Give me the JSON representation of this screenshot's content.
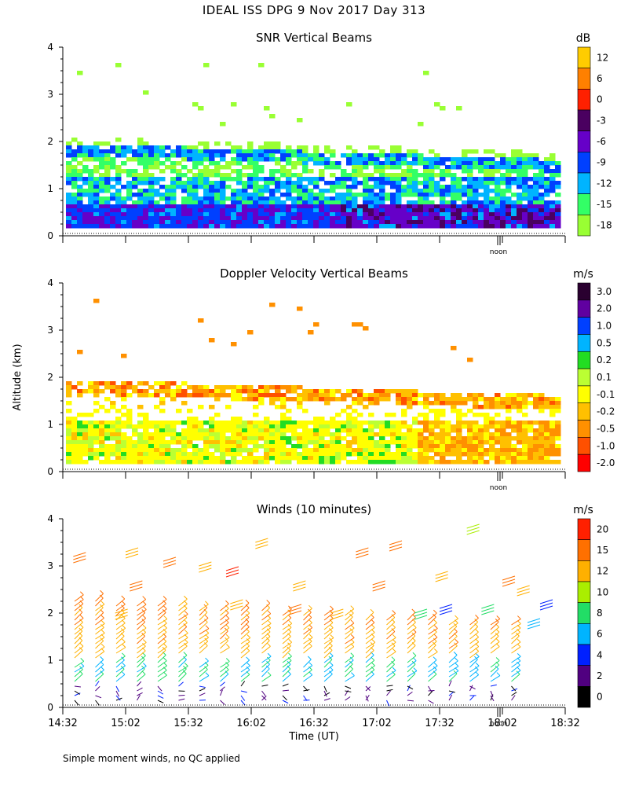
{
  "page_title": "IDEAL ISS DPG   9 Nov 2017 Day 313",
  "footnote": "Simple moment winds, no QC applied",
  "ylabel": "Altitude (km)",
  "xlabel": "Time (UT)",
  "chart_data": [
    {
      "type": "heatmap",
      "title": "SNR Vertical Beams",
      "units": "dB",
      "ylabel": "Altitude (km)",
      "ylim": [
        0,
        4
      ],
      "yticks": [
        "0",
        "1",
        "2",
        "3",
        "4"
      ],
      "noon_label": "noon",
      "colorbar_labels": [
        "12",
        "6",
        "0",
        "-3",
        "-6",
        "-9",
        "-12",
        "-15",
        "-18"
      ],
      "colorbar_colors": [
        "#ffcc00",
        "#ff8000",
        "#ff2000",
        "#4a0060",
        "#6600c8",
        "#0040ff",
        "#00b4ff",
        "#33ff66",
        "#99ff33"
      ],
      "layers": [
        {
          "from_alt": 0.2,
          "to_alt": 0.8,
          "level": "-6"
        },
        {
          "from_alt": 0.8,
          "to_alt": 1.3,
          "level": "-12"
        },
        {
          "from_alt": 1.5,
          "to_alt": 1.9,
          "level": "-9"
        }
      ]
    },
    {
      "type": "heatmap",
      "title": "Doppler Velocity Vertical Beams",
      "units": "m/s",
      "ylabel": "Altitude (km)",
      "ylim": [
        0,
        4
      ],
      "yticks": [
        "0",
        "1",
        "2",
        "3",
        "4"
      ],
      "noon_label": "noon",
      "colorbar_labels": [
        "3.0",
        "2.0",
        "1.0",
        "0.5",
        "0.2",
        "0.1",
        "-0.1",
        "-0.2",
        "-0.5",
        "-1.0",
        "-2.0"
      ],
      "colorbar_colors": [
        "#2a0030",
        "#6000a0",
        "#0040ff",
        "#00b4ff",
        "#22dd22",
        "#bbff33",
        "#ffff00",
        "#ffc000",
        "#ff9000",
        "#ff5000",
        "#ff0000"
      ],
      "layers": [
        {
          "from_alt": 0.2,
          "to_alt": 1.2,
          "level": "-0.1"
        },
        {
          "from_alt": 1.4,
          "to_alt": 1.9,
          "level": "-0.2"
        }
      ]
    },
    {
      "type": "scatter",
      "title": "Winds (10 minutes)",
      "units": "m/s",
      "ylabel": "Altitude (km)",
      "xlabel": "Time (UT)",
      "ylim": [
        0,
        4
      ],
      "yticks": [
        "0",
        "1",
        "2",
        "3",
        "4"
      ],
      "xticks": [
        "14:32",
        "15:02",
        "15:32",
        "16:02",
        "16:32",
        "17:02",
        "17:32",
        "18:02",
        "18:32"
      ],
      "noon_label": "noon",
      "colorbar_labels": [
        "20",
        "15",
        "12",
        "10",
        "8",
        "6",
        "4",
        "2",
        "0"
      ],
      "colorbar_colors": [
        "#ff2000",
        "#ff7000",
        "#ffb000",
        "#aaee00",
        "#22dd66",
        "#00b4ff",
        "#0020ff",
        "#500080",
        "#000000"
      ],
      "profiles_start": "14:32",
      "profile_interval_min": 10
    }
  ]
}
